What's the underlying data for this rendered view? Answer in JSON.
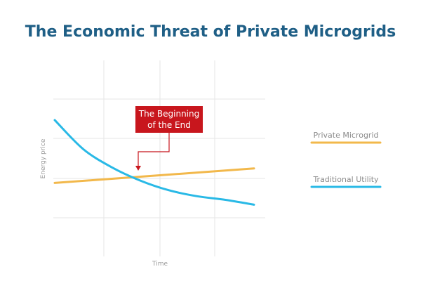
{
  "chart_data": {
    "type": "line",
    "title": "The Economic Threat of Private Microgrids",
    "xlabel": "Time",
    "ylabel": "Energy price",
    "grid": true,
    "legend_placement": "right",
    "annotation": {
      "line1": "The Beginning",
      "line2": "of the End"
    },
    "series": [
      {
        "name": "Private Microgrid",
        "color": "#f2b84b",
        "values": [
          0.3,
          0.42
        ]
      },
      {
        "name": "Traditional Utility",
        "color": "#29b9e6",
        "values": [
          0.82,
          0.58,
          0.43,
          0.32,
          0.24,
          0.19,
          0.16,
          0.12
        ]
      }
    ],
    "colors": {
      "title": "#1f5f86",
      "annotation_box": "#c8161d",
      "grid": "#e6e6e6"
    }
  }
}
